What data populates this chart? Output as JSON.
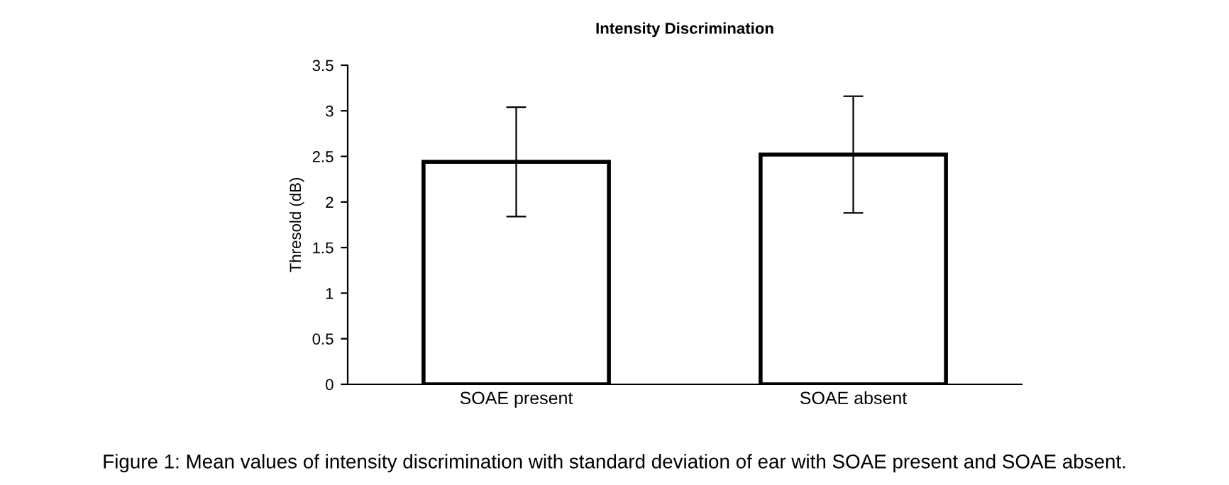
{
  "chart_data": {
    "type": "bar",
    "title": "Intensity Discrimination",
    "ylabel": "Thresold (dB)",
    "categories": [
      "SOAE present",
      "SOAE absent"
    ],
    "values": [
      2.44,
      2.52
    ],
    "errors": [
      0.6,
      0.64
    ],
    "color": "#ffffff",
    "ylim": [
      0,
      3.5
    ],
    "yticks": [
      0,
      0.5,
      1,
      1.5,
      2,
      2.5,
      3,
      3.5
    ],
    "grid": false,
    "annotations": [
      "Figure 1: Mean values of intensity discrimination with standard deviation of ear with SOAE present and SOAE absent."
    ]
  }
}
